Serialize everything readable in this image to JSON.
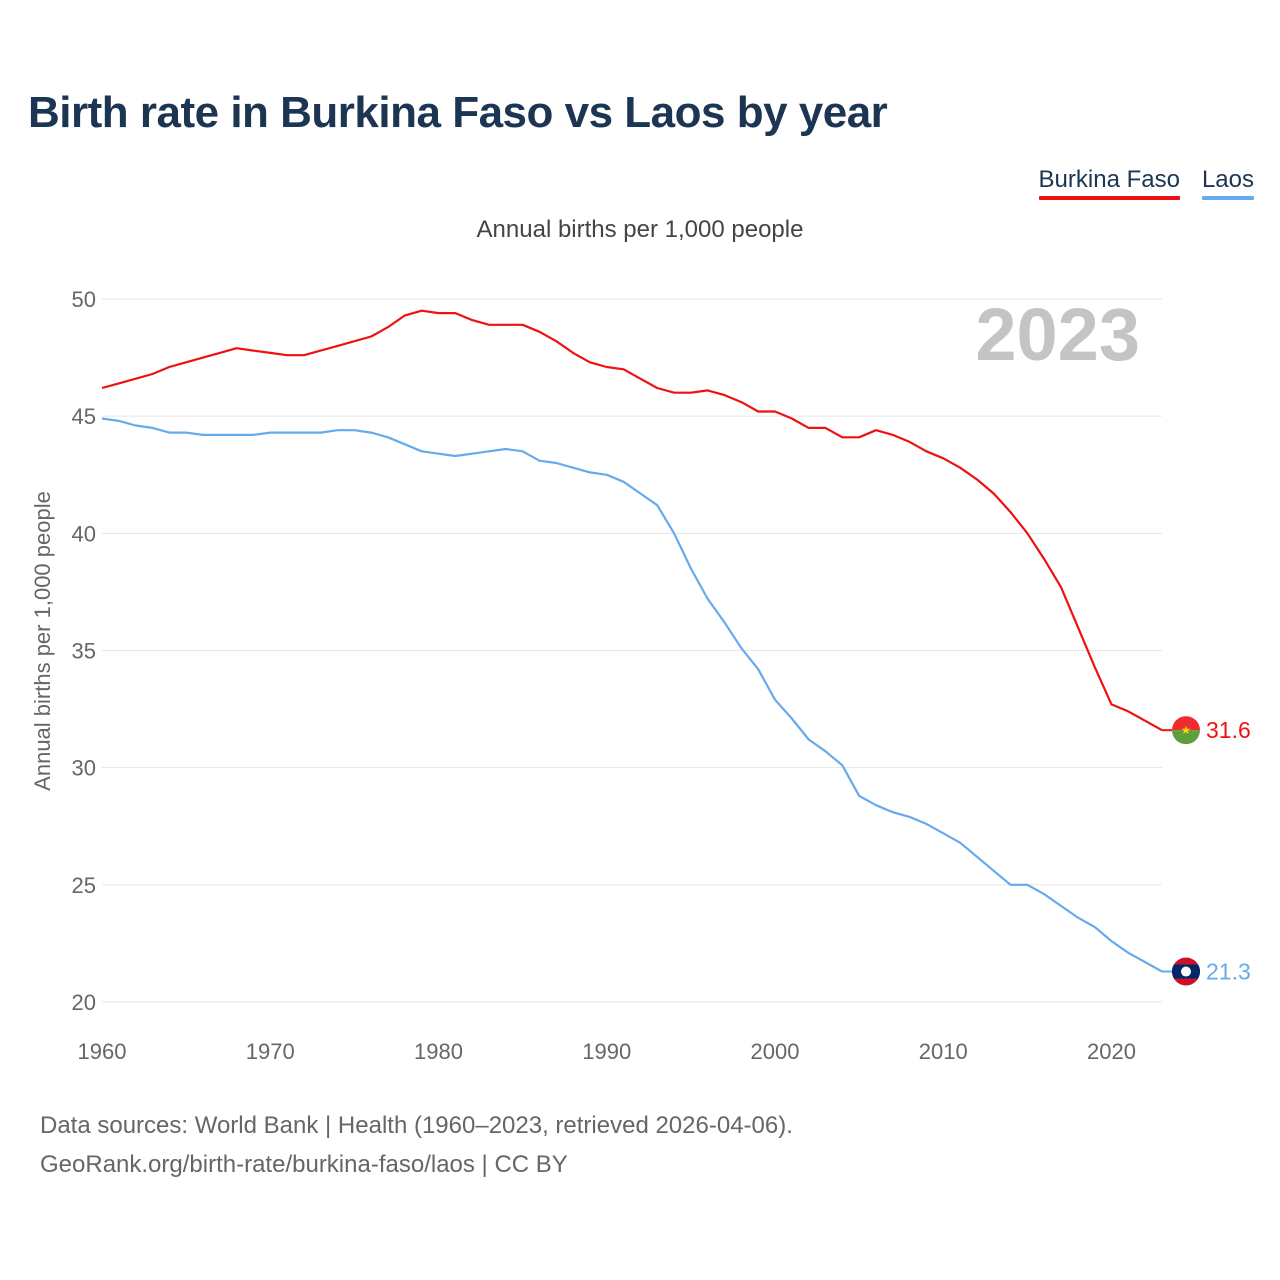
{
  "title": "Birth rate in Burkina Faso vs Laos by year",
  "subtitle": "Annual births per 1,000 people",
  "legend": [
    {
      "label": "Burkina Faso",
      "color": "#ee1111"
    },
    {
      "label": "Laos",
      "color": "#66aaee"
    }
  ],
  "year_watermark": "2023",
  "footer": {
    "line1": "Data sources: World Bank | Health (1960–2023, retrieved 2026-04-06).",
    "line2": "GeoRank.org/birth-rate/burkina-faso/laos | CC BY"
  },
  "chart_data": {
    "type": "line",
    "title": "Birth rate in Burkina Faso vs Laos by year",
    "ylabel": "Annual births per 1,000 people",
    "xlabel": "",
    "xlim": [
      1960,
      2023
    ],
    "ylim": [
      20,
      50
    ],
    "x_ticks": [
      1960,
      1970,
      1980,
      1990,
      2000,
      2010,
      2020
    ],
    "y_ticks": [
      20,
      25,
      30,
      35,
      40,
      45,
      50
    ],
    "grid": true,
    "legend": "top-right",
    "x": [
      1960,
      1961,
      1962,
      1963,
      1964,
      1965,
      1966,
      1967,
      1968,
      1969,
      1970,
      1971,
      1972,
      1973,
      1974,
      1975,
      1976,
      1977,
      1978,
      1979,
      1980,
      1981,
      1982,
      1983,
      1984,
      1985,
      1986,
      1987,
      1988,
      1989,
      1990,
      1991,
      1992,
      1993,
      1994,
      1995,
      1996,
      1997,
      1998,
      1999,
      2000,
      2001,
      2002,
      2003,
      2004,
      2005,
      2006,
      2007,
      2008,
      2009,
      2010,
      2011,
      2012,
      2013,
      2014,
      2015,
      2016,
      2017,
      2018,
      2019,
      2020,
      2021,
      2022,
      2023
    ],
    "series": [
      {
        "name": "Burkina Faso",
        "color": "#ee1111",
        "end_label": "31.6",
        "values": [
          46.2,
          46.4,
          46.6,
          46.8,
          47.1,
          47.3,
          47.5,
          47.7,
          47.9,
          47.8,
          47.7,
          47.6,
          47.6,
          47.8,
          48.0,
          48.2,
          48.4,
          48.8,
          49.3,
          49.5,
          49.4,
          49.4,
          49.1,
          48.9,
          48.9,
          48.9,
          48.6,
          48.2,
          47.7,
          47.3,
          47.1,
          47.0,
          46.6,
          46.2,
          46.0,
          46.0,
          46.1,
          45.9,
          45.6,
          45.2,
          45.2,
          44.9,
          44.5,
          44.5,
          44.1,
          44.1,
          44.4,
          44.2,
          43.9,
          43.5,
          43.2,
          42.8,
          42.3,
          41.7,
          40.9,
          40.0,
          38.9,
          37.7,
          36.0,
          34.3,
          32.7,
          32.4,
          32.0,
          31.6
        ]
      },
      {
        "name": "Laos",
        "color": "#66aaee",
        "end_label": "21.3",
        "values": [
          44.9,
          44.8,
          44.6,
          44.5,
          44.3,
          44.3,
          44.2,
          44.2,
          44.2,
          44.2,
          44.3,
          44.3,
          44.3,
          44.3,
          44.4,
          44.4,
          44.3,
          44.1,
          43.8,
          43.5,
          43.4,
          43.3,
          43.4,
          43.5,
          43.6,
          43.5,
          43.1,
          43.0,
          42.8,
          42.6,
          42.5,
          42.2,
          41.7,
          41.2,
          40.0,
          38.5,
          37.2,
          36.2,
          35.1,
          34.2,
          32.9,
          32.1,
          31.2,
          30.7,
          30.1,
          28.8,
          28.4,
          28.1,
          27.9,
          27.6,
          27.2,
          26.8,
          26.2,
          25.6,
          25.0,
          25.0,
          24.6,
          24.1,
          23.6,
          23.2,
          22.6,
          22.1,
          21.7,
          21.3
        ]
      }
    ]
  }
}
